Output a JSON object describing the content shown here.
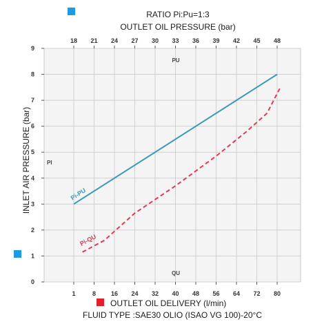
{
  "chart_data": {
    "type": "line",
    "title": "RATIO Pi:Pu=1:3",
    "top_axis": {
      "label": "OUTLET OIL PRESSURE (bar)",
      "ticks": [
        "18",
        "21",
        "24",
        "27",
        "30",
        "33",
        "36",
        "39",
        "42",
        "45",
        "48"
      ]
    },
    "bottom_axis": {
      "label": "OUTLET OIL DELIVERY (l/min)",
      "ticks": [
        "1",
        "8",
        "16",
        "24",
        "32",
        "40",
        "48",
        "56",
        "64",
        "72",
        "80"
      ]
    },
    "y_axis": {
      "label": "INLET AIR PRESSURE (bar)",
      "ticks": [
        "0",
        "1",
        "2",
        "3",
        "4",
        "5",
        "6",
        "7",
        "8",
        "9"
      ],
      "ylim": [
        0,
        9
      ]
    },
    "footer": "FLUID TYPE :SAE30 OLIO (ISAO VG 100)-20°C",
    "grid": true,
    "annotations": {
      "pu": "PU",
      "pi": "PI",
      "qu": "QU"
    },
    "legend_colors": {
      "pressure": "#1e9be0",
      "delivery": "#e0202a"
    },
    "series": [
      {
        "name": "Pi-PU",
        "axis": "top",
        "style": "solid",
        "color": "#3a9ab8",
        "x": [
          18,
          48
        ],
        "y": [
          3.0,
          8.0
        ]
      },
      {
        "name": "Pi-QU",
        "axis": "bottom",
        "style": "dashed",
        "color": "#e03a55",
        "x": [
          4,
          12,
          24,
          40,
          56,
          68,
          76,
          81
        ],
        "y": [
          1.15,
          1.6,
          2.65,
          3.7,
          4.85,
          5.8,
          6.5,
          7.45
        ]
      }
    ]
  }
}
